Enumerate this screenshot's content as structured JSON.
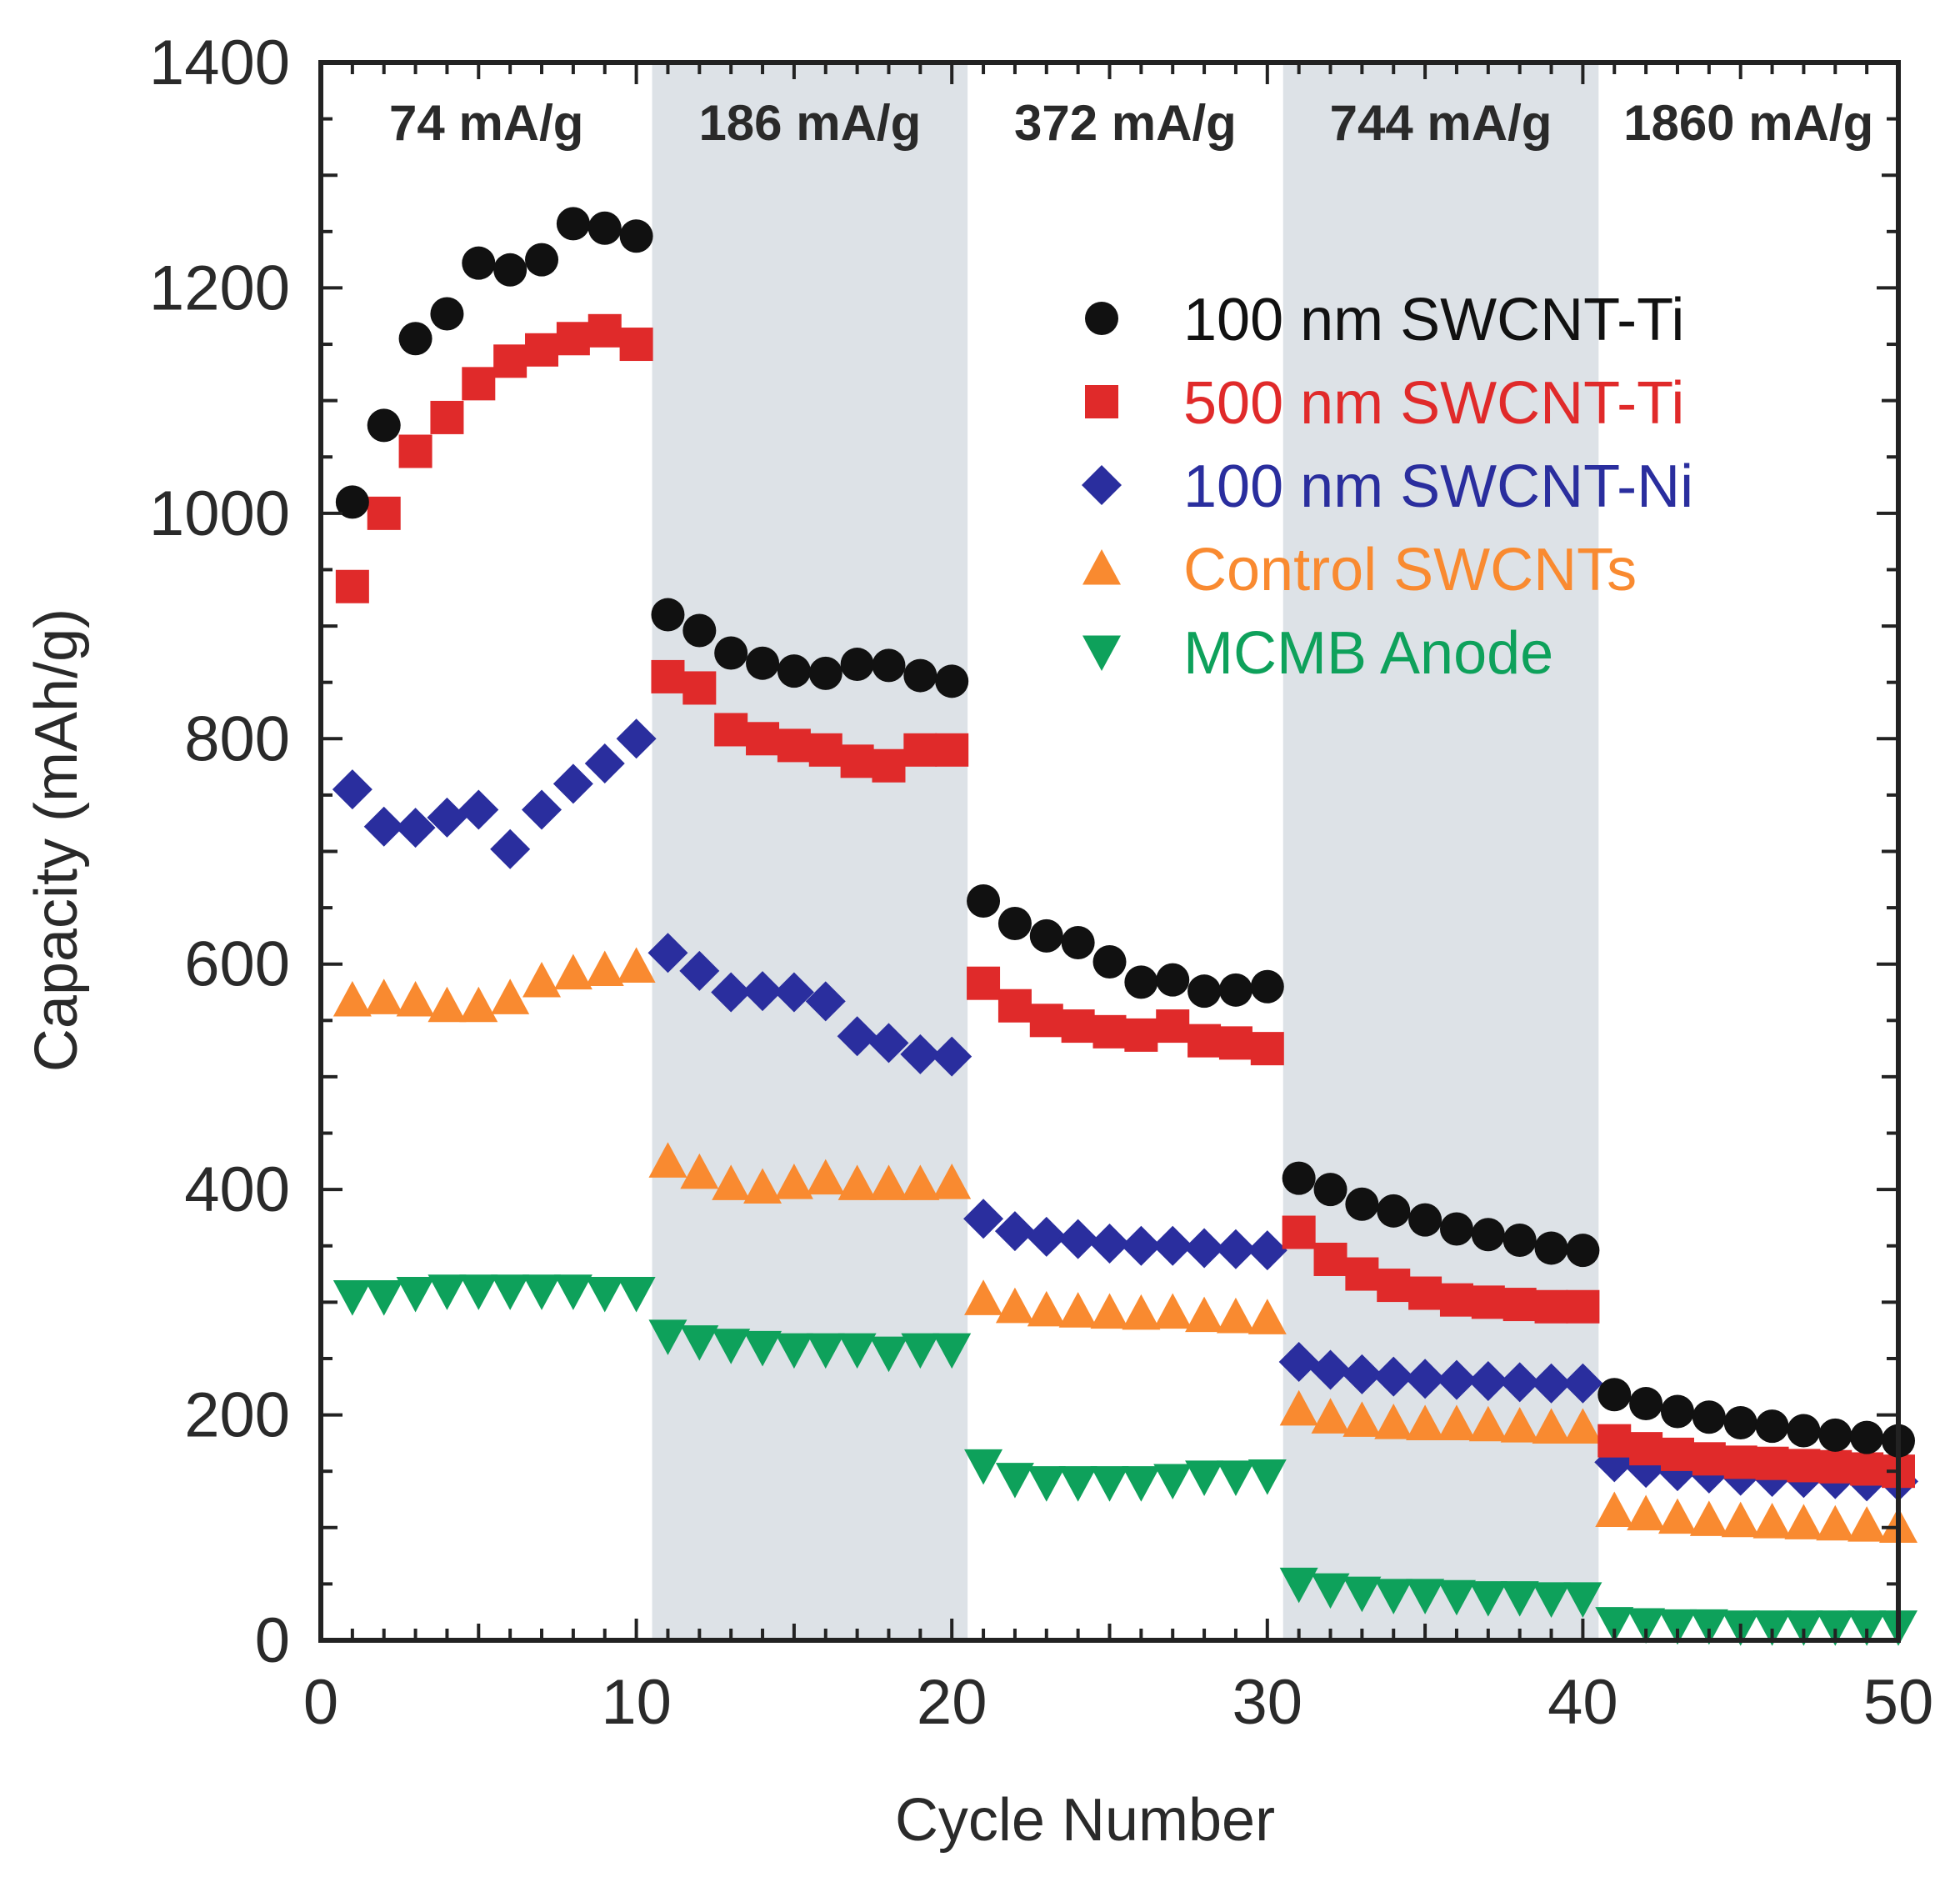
{
  "chart_data": {
    "type": "scatter",
    "title": "",
    "xlabel": "Cycle Number",
    "ylabel": "Capacity (mAh/g)",
    "xlim": [
      0,
      50
    ],
    "ylim": [
      0,
      1400
    ],
    "xticks": [
      0,
      10,
      20,
      30,
      40,
      50
    ],
    "yticks": [
      0,
      200,
      400,
      600,
      800,
      1000,
      1200,
      1400
    ],
    "grid": false,
    "legend_position": "top-right",
    "regions": [
      {
        "label": "74 mA/g",
        "x_range": [
          0,
          10.5
        ],
        "shaded": false
      },
      {
        "label": "186 mA/g",
        "x_range": [
          10.5,
          20.5
        ],
        "shaded": true,
        "color": "#dde2e7"
      },
      {
        "label": "372 mA/g",
        "x_range": [
          20.5,
          30.5
        ],
        "shaded": false
      },
      {
        "label": "744 mA/g",
        "x_range": [
          30.5,
          40.5
        ],
        "shaded": true,
        "color": "#dde2e7"
      },
      {
        "label": "1860 mA/g",
        "x_range": [
          40.5,
          50
        ],
        "shaded": false
      }
    ],
    "x": [
      1,
      2,
      3,
      4,
      5,
      6,
      7,
      8,
      9,
      10,
      11,
      12,
      13,
      14,
      15,
      16,
      17,
      18,
      19,
      20,
      21,
      22,
      23,
      24,
      25,
      26,
      27,
      28,
      29,
      30,
      31,
      32,
      33,
      34,
      35,
      36,
      37,
      38,
      39,
      40,
      41,
      42,
      43,
      44,
      45,
      46,
      47,
      48,
      49,
      50
    ],
    "series": [
      {
        "name": "100 nm SWCNT-Ti",
        "marker": "circle",
        "color": "#111111",
        "values": [
          1010,
          1078,
          1155,
          1177,
          1222,
          1216,
          1225,
          1257,
          1253,
          1246,
          910,
          896,
          876,
          867,
          860,
          858,
          866,
          865,
          856,
          851,
          656,
          636,
          625,
          619,
          602,
          584,
          586,
          576,
          577,
          580,
          410,
          400,
          387,
          381,
          373,
          365,
          360,
          355,
          348,
          346,
          218,
          210,
          203,
          198,
          193,
          190,
          186,
          182,
          180,
          177
        ]
      },
      {
        "name": "500 nm SWCNT-Ti",
        "marker": "square",
        "color": "#e02a2a",
        "values": [
          935,
          1000,
          1055,
          1085,
          1115,
          1135,
          1145,
          1155,
          1162,
          1150,
          855,
          845,
          808,
          800,
          794,
          790,
          780,
          776,
          790,
          790,
          583,
          563,
          550,
          545,
          540,
          537,
          545,
          532,
          530,
          525,
          362,
          338,
          325,
          315,
          308,
          302,
          300,
          298,
          296,
          296,
          177,
          170,
          165,
          161,
          158,
          157,
          155,
          154,
          152,
          150
        ]
      },
      {
        "name": "100 nm SWCNT-Ni",
        "marker": "diamond",
        "color": "#2a2e9e",
        "values": [
          755,
          722,
          721,
          730,
          737,
          702,
          737,
          760,
          778,
          800,
          610,
          594,
          575,
          576,
          575,
          567,
          536,
          530,
          520,
          518,
          374,
          363,
          358,
          356,
          352,
          350,
          350,
          348,
          347,
          346,
          247,
          240,
          236,
          234,
          232,
          231,
          230,
          229,
          228,
          228,
          158,
          153,
          150,
          148,
          146,
          145,
          144,
          143,
          141,
          141
        ]
      },
      {
        "name": "Control SWCNTs",
        "marker": "triangle-up",
        "color": "#f98a30",
        "values": [
          568,
          570,
          568,
          563,
          563,
          570,
          585,
          592,
          595,
          598,
          425,
          415,
          405,
          402,
          406,
          410,
          405,
          405,
          405,
          406,
          303,
          296,
          293,
          292,
          291,
          290,
          291,
          288,
          287,
          286,
          205,
          198,
          195,
          193,
          192,
          192,
          191,
          190,
          189,
          189,
          115,
          112,
          109,
          107,
          106,
          105,
          104,
          103,
          102,
          101
        ]
      },
      {
        "name": "MCMB Anode",
        "marker": "triangle-down",
        "color": "#0ea15b",
        "values": [
          305,
          305,
          308,
          310,
          310,
          310,
          310,
          310,
          308,
          308,
          270,
          265,
          262,
          260,
          258,
          258,
          258,
          255,
          258,
          258,
          155,
          143,
          140,
          140,
          140,
          140,
          142,
          145,
          145,
          146,
          50,
          45,
          42,
          40,
          40,
          39,
          38,
          38,
          37,
          37,
          15,
          14,
          13,
          13,
          12,
          12,
          12,
          12,
          12,
          12
        ]
      }
    ]
  }
}
